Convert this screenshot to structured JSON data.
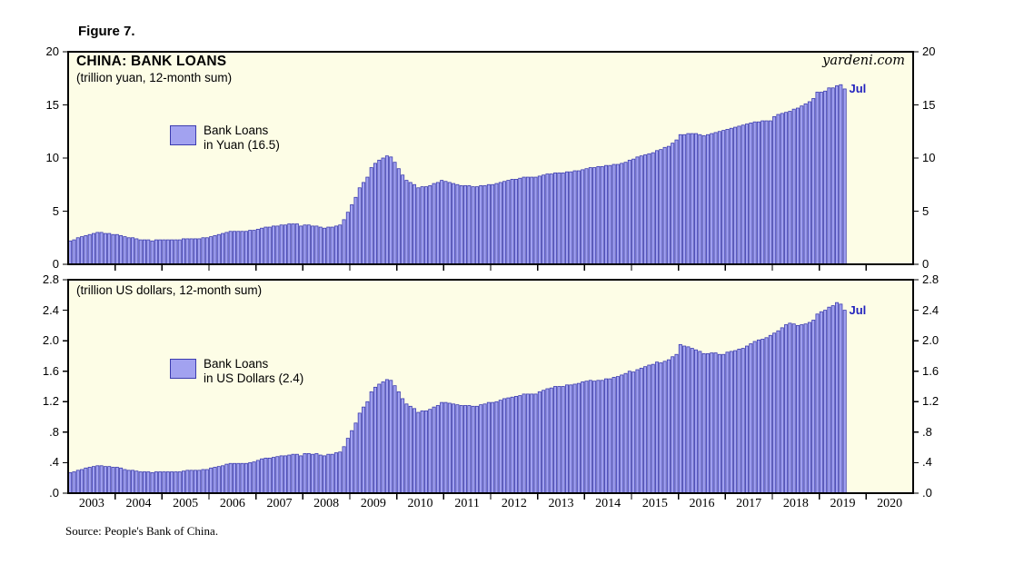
{
  "figure_label": "Figure 7.",
  "branding": "yardeni.com",
  "source": "Source: People's Bank of China.",
  "colors": {
    "bar_fill": "#A2A2F0",
    "bar_stroke": "#3C3CB0",
    "plot_bg": "#FDFDE6",
    "frame": "#000000",
    "annotation_blue": "#2222BE"
  },
  "x_axis": {
    "year_labels": [
      "2003",
      "2004",
      "2005",
      "2006",
      "2007",
      "2008",
      "2009",
      "2010",
      "2011",
      "2012",
      "2013",
      "2014",
      "2015",
      "2016",
      "2017",
      "2018",
      "2019",
      "2020"
    ]
  },
  "chart_data": [
    {
      "type": "bar",
      "panel": "top",
      "title": "CHINA: BANK LOANS",
      "subtitle": "(trillion yuan, 12-month sum)",
      "legend": {
        "line1": "Bank Loans",
        "line2": "in Yuan (16.5)"
      },
      "last_point_label": "Jul",
      "x_start": "2003-01",
      "x_end": "2019-07",
      "x_axis_end": "2020-12",
      "ylim": [
        0,
        20
      ],
      "ytick_values": [
        0,
        5,
        10,
        15,
        20
      ],
      "ytick_labels": [
        "0",
        "5",
        "10",
        "15",
        "20"
      ],
      "grid": false,
      "legend_position": "upper-left-inside",
      "values": [
        2.2,
        2.3,
        2.5,
        2.6,
        2.7,
        2.8,
        2.9,
        3.0,
        3.0,
        2.9,
        2.9,
        2.8,
        2.8,
        2.7,
        2.6,
        2.5,
        2.5,
        2.4,
        2.3,
        2.3,
        2.3,
        2.2,
        2.3,
        2.3,
        2.3,
        2.3,
        2.3,
        2.3,
        2.3,
        2.4,
        2.4,
        2.4,
        2.4,
        2.4,
        2.5,
        2.5,
        2.6,
        2.7,
        2.8,
        2.9,
        3.0,
        3.1,
        3.1,
        3.1,
        3.1,
        3.1,
        3.2,
        3.2,
        3.3,
        3.4,
        3.5,
        3.5,
        3.6,
        3.6,
        3.7,
        3.7,
        3.8,
        3.8,
        3.8,
        3.6,
        3.7,
        3.7,
        3.6,
        3.6,
        3.5,
        3.4,
        3.5,
        3.5,
        3.6,
        3.7,
        4.2,
        4.9,
        5.6,
        6.3,
        7.2,
        7.7,
        8.2,
        9.1,
        9.5,
        9.8,
        10.0,
        10.2,
        10.1,
        9.6,
        9.0,
        8.4,
        7.9,
        7.7,
        7.5,
        7.2,
        7.3,
        7.3,
        7.4,
        7.6,
        7.7,
        7.9,
        7.8,
        7.7,
        7.6,
        7.5,
        7.4,
        7.4,
        7.4,
        7.3,
        7.3,
        7.4,
        7.4,
        7.5,
        7.5,
        7.6,
        7.7,
        7.8,
        7.9,
        8.0,
        8.0,
        8.1,
        8.2,
        8.2,
        8.2,
        8.2,
        8.3,
        8.4,
        8.5,
        8.5,
        8.6,
        8.6,
        8.6,
        8.7,
        8.7,
        8.8,
        8.8,
        8.9,
        9.0,
        9.1,
        9.1,
        9.2,
        9.2,
        9.3,
        9.3,
        9.4,
        9.4,
        9.5,
        9.6,
        9.8,
        9.9,
        10.1,
        10.2,
        10.3,
        10.4,
        10.5,
        10.7,
        10.8,
        11.0,
        11.1,
        11.4,
        11.7,
        12.2,
        12.2,
        12.3,
        12.3,
        12.3,
        12.2,
        12.1,
        12.2,
        12.3,
        12.4,
        12.5,
        12.6,
        12.7,
        12.8,
        12.9,
        13.0,
        13.1,
        13.2,
        13.3,
        13.4,
        13.4,
        13.5,
        13.5,
        13.5,
        13.9,
        14.1,
        14.2,
        14.3,
        14.4,
        14.6,
        14.7,
        14.9,
        15.1,
        15.3,
        15.6,
        16.2,
        16.2,
        16.3,
        16.6,
        16.6,
        16.8,
        16.9,
        16.5
      ]
    },
    {
      "type": "bar",
      "panel": "bottom",
      "title": "",
      "subtitle": "(trillion US dollars, 12-month sum)",
      "legend": {
        "line1": "Bank Loans",
        "line2": "in US Dollars (2.4)"
      },
      "last_point_label": "Jul",
      "x_start": "2003-01",
      "x_end": "2019-07",
      "x_axis_end": "2020-12",
      "ylim": [
        0,
        2.8
      ],
      "ytick_values": [
        0,
        0.4,
        0.8,
        1.2,
        1.6,
        2.0,
        2.4,
        2.8
      ],
      "ytick_labels": [
        ".0",
        ".4",
        ".8",
        "1.2",
        "1.6",
        "2.0",
        "2.4",
        "2.8"
      ],
      "grid": false,
      "legend_position": "upper-left-inside",
      "values": [
        0.27,
        0.28,
        0.3,
        0.31,
        0.33,
        0.34,
        0.35,
        0.36,
        0.36,
        0.35,
        0.35,
        0.34,
        0.34,
        0.33,
        0.31,
        0.3,
        0.3,
        0.29,
        0.28,
        0.28,
        0.28,
        0.27,
        0.28,
        0.28,
        0.28,
        0.28,
        0.28,
        0.28,
        0.28,
        0.29,
        0.3,
        0.3,
        0.3,
        0.3,
        0.31,
        0.31,
        0.33,
        0.34,
        0.35,
        0.36,
        0.38,
        0.39,
        0.39,
        0.39,
        0.39,
        0.39,
        0.4,
        0.41,
        0.43,
        0.45,
        0.46,
        0.46,
        0.47,
        0.48,
        0.49,
        0.49,
        0.5,
        0.51,
        0.51,
        0.49,
        0.52,
        0.52,
        0.51,
        0.52,
        0.5,
        0.49,
        0.51,
        0.51,
        0.53,
        0.54,
        0.61,
        0.72,
        0.82,
        0.92,
        1.05,
        1.13,
        1.2,
        1.33,
        1.39,
        1.43,
        1.46,
        1.49,
        1.48,
        1.41,
        1.33,
        1.24,
        1.17,
        1.14,
        1.11,
        1.06,
        1.08,
        1.08,
        1.1,
        1.13,
        1.15,
        1.19,
        1.19,
        1.18,
        1.17,
        1.16,
        1.15,
        1.15,
        1.15,
        1.14,
        1.14,
        1.16,
        1.17,
        1.19,
        1.19,
        1.2,
        1.22,
        1.24,
        1.25,
        1.26,
        1.27,
        1.28,
        1.3,
        1.3,
        1.3,
        1.3,
        1.33,
        1.35,
        1.37,
        1.38,
        1.4,
        1.4,
        1.4,
        1.42,
        1.42,
        1.43,
        1.44,
        1.46,
        1.47,
        1.48,
        1.47,
        1.48,
        1.48,
        1.5,
        1.5,
        1.52,
        1.53,
        1.55,
        1.57,
        1.6,
        1.59,
        1.62,
        1.64,
        1.66,
        1.68,
        1.69,
        1.72,
        1.71,
        1.73,
        1.75,
        1.79,
        1.82,
        1.95,
        1.93,
        1.92,
        1.9,
        1.88,
        1.86,
        1.83,
        1.83,
        1.84,
        1.84,
        1.82,
        1.82,
        1.85,
        1.86,
        1.87,
        1.89,
        1.9,
        1.93,
        1.96,
        1.99,
        2.01,
        2.02,
        2.04,
        2.07,
        2.1,
        2.13,
        2.17,
        2.21,
        2.23,
        2.22,
        2.2,
        2.21,
        2.22,
        2.24,
        2.27,
        2.35,
        2.38,
        2.4,
        2.44,
        2.46,
        2.5,
        2.48,
        2.4
      ]
    }
  ]
}
